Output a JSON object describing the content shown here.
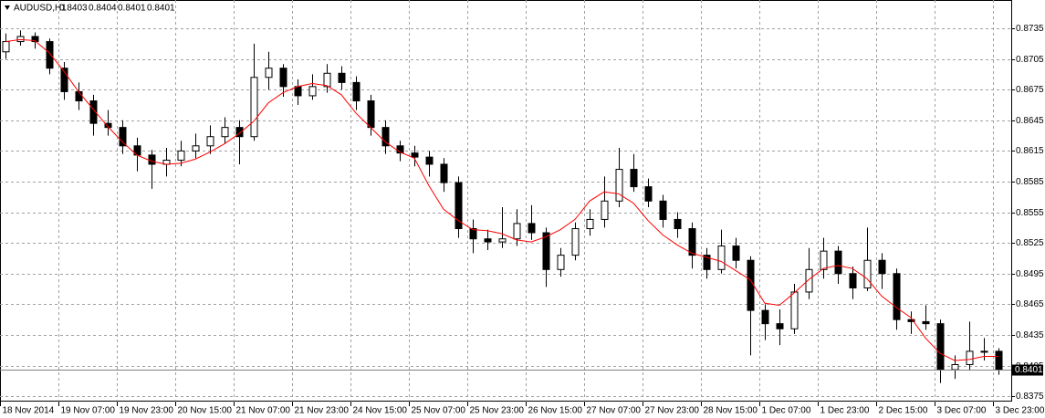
{
  "chart_data": {
    "type": "candlestick",
    "header": {
      "symbol": "AUDUSD,H1",
      "values": [
        0.8403,
        0.8404,
        0.8401,
        0.8401
      ]
    },
    "x_labels": [
      "18 Nov 2014",
      "19 Nov 07:00",
      "19 Nov 23:00",
      "20 Nov 15:00",
      "21 Nov 07:00",
      "21 Nov 23:00",
      "24 Nov 15:00",
      "25 Nov 07:00",
      "25 Nov 23:00",
      "26 Nov 15:00",
      "27 Nov 07:00",
      "27 Nov 23:00",
      "28 Nov 15:00",
      "1 Dec 07:00",
      "1 Dec 23:00",
      "2 Dec 15:00",
      "3 Dec 07:00",
      "3 Dec 23:00"
    ],
    "candles": {
      "open": [
        0.8712,
        0.8722,
        0.8727,
        0.8722,
        0.8696,
        0.8673,
        0.8664,
        0.8642,
        0.8638,
        0.862,
        0.8611,
        0.8602,
        0.8606,
        0.8615,
        0.862,
        0.8629,
        0.8638,
        0.8629,
        0.8687,
        0.8696,
        0.8678,
        0.8669,
        0.8678,
        0.8691,
        0.8682,
        0.8664,
        0.8638,
        0.862,
        0.8613,
        0.8609,
        0.8602,
        0.8584,
        0.8539,
        0.8529,
        0.8526,
        0.8529,
        0.8544,
        0.8535,
        0.8499,
        0.8513,
        0.8539,
        0.8548,
        0.8566,
        0.8597,
        0.858,
        0.8566,
        0.8548,
        0.8539,
        0.8513,
        0.8499,
        0.8522,
        0.8508,
        0.8459,
        0.8446,
        0.8441,
        0.8477,
        0.8499,
        0.8517,
        0.8495,
        0.8481,
        0.8508,
        0.8495,
        0.845,
        0.8448,
        0.8446,
        0.8401,
        0.8406,
        0.8419,
        0.8419
      ],
      "high": [
        0.873,
        0.8733,
        0.8731,
        0.8725,
        0.8702,
        0.8682,
        0.867,
        0.8655,
        0.8645,
        0.8628,
        0.8616,
        0.8618,
        0.8625,
        0.8632,
        0.864,
        0.8648,
        0.8645,
        0.872,
        0.8712,
        0.87,
        0.8685,
        0.869,
        0.87,
        0.8698,
        0.8688,
        0.867,
        0.8645,
        0.8625,
        0.862,
        0.8615,
        0.8608,
        0.859,
        0.8548,
        0.8538,
        0.856,
        0.8558,
        0.8562,
        0.854,
        0.852,
        0.8545,
        0.8558,
        0.859,
        0.8618,
        0.8612,
        0.8588,
        0.8572,
        0.8555,
        0.8545,
        0.852,
        0.8538,
        0.853,
        0.8512,
        0.8465,
        0.846,
        0.8485,
        0.852,
        0.853,
        0.8522,
        0.8502,
        0.854,
        0.8515,
        0.85,
        0.8458,
        0.8464,
        0.845,
        0.8415,
        0.8448,
        0.8432,
        0.8422
      ],
      "low": [
        0.8705,
        0.8718,
        0.8715,
        0.869,
        0.8665,
        0.8655,
        0.863,
        0.863,
        0.8612,
        0.8595,
        0.8578,
        0.859,
        0.86,
        0.8608,
        0.8612,
        0.8622,
        0.8602,
        0.8625,
        0.8675,
        0.8668,
        0.866,
        0.8665,
        0.8672,
        0.8675,
        0.8655,
        0.863,
        0.8612,
        0.8605,
        0.86,
        0.859,
        0.8575,
        0.853,
        0.8515,
        0.8518,
        0.852,
        0.8522,
        0.8528,
        0.8482,
        0.8492,
        0.8508,
        0.8532,
        0.854,
        0.856,
        0.8575,
        0.856,
        0.854,
        0.853,
        0.85,
        0.849,
        0.8495,
        0.85,
        0.8415,
        0.843,
        0.8425,
        0.8436,
        0.847,
        0.849,
        0.8485,
        0.847,
        0.8478,
        0.848,
        0.844,
        0.8436,
        0.844,
        0.8388,
        0.8392,
        0.84,
        0.841,
        0.8396
      ],
      "close": [
        0.8722,
        0.8727,
        0.8722,
        0.8696,
        0.8673,
        0.8664,
        0.8642,
        0.8638,
        0.862,
        0.8611,
        0.8602,
        0.8606,
        0.8615,
        0.862,
        0.8629,
        0.8638,
        0.8629,
        0.8687,
        0.8696,
        0.8678,
        0.8669,
        0.8678,
        0.8691,
        0.8682,
        0.8664,
        0.8638,
        0.862,
        0.8613,
        0.8609,
        0.8602,
        0.8584,
        0.8539,
        0.8529,
        0.8526,
        0.8529,
        0.8544,
        0.8535,
        0.8499,
        0.8513,
        0.8539,
        0.8548,
        0.8566,
        0.8597,
        0.858,
        0.8566,
        0.8548,
        0.8539,
        0.8513,
        0.8499,
        0.8522,
        0.8508,
        0.8459,
        0.8446,
        0.8441,
        0.8477,
        0.8499,
        0.8517,
        0.8495,
        0.8481,
        0.8508,
        0.8495,
        0.845,
        0.8448,
        0.8446,
        0.8401,
        0.8406,
        0.8419,
        0.8419,
        0.8401
      ]
    },
    "ma": {
      "color": "#ff0000",
      "values": [
        0.8722,
        0.8724,
        0.8723,
        0.8711,
        0.8693,
        0.8673,
        0.8656,
        0.8639,
        0.8624,
        0.8611,
        0.8605,
        0.8602,
        0.8603,
        0.8607,
        0.8614,
        0.8622,
        0.8632,
        0.8644,
        0.8662,
        0.8672,
        0.8678,
        0.8681,
        0.8679,
        0.867,
        0.8652,
        0.8638,
        0.8624,
        0.8614,
        0.8608,
        0.8581,
        0.8558,
        0.8547,
        0.8538,
        0.8537,
        0.8534,
        0.8528,
        0.8526,
        0.8531,
        0.8538,
        0.8548,
        0.8566,
        0.8575,
        0.8573,
        0.8564,
        0.8547,
        0.8533,
        0.8523,
        0.8515,
        0.8511,
        0.8507,
        0.8498,
        0.8489,
        0.8466,
        0.8464,
        0.8476,
        0.8489,
        0.85,
        0.8503,
        0.85,
        0.849,
        0.8473,
        0.8462,
        0.8452,
        0.8432,
        0.8417,
        0.841,
        0.8411,
        0.8414,
        0.8414
      ]
    },
    "last_price": 0.8401,
    "ylim": [
      0.83698,
      0.87627
    ],
    "yticks": [
      0.8735,
      0.8705,
      0.8675,
      0.8645,
      0.8615,
      0.8585,
      0.8555,
      0.8525,
      0.8495,
      0.8465,
      0.8435,
      0.8405,
      0.8375
    ],
    "grid": true
  }
}
